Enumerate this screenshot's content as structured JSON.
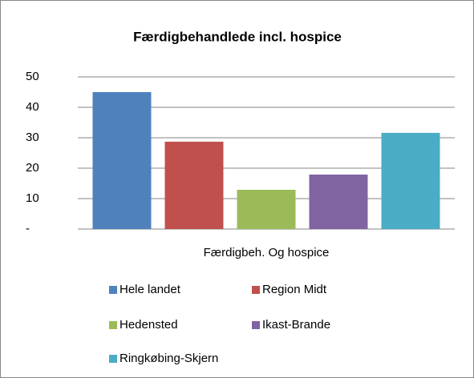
{
  "chart_data": {
    "type": "bar",
    "title": "Færdigbehandlede incl. hospice",
    "categories": [
      "Færdigbeh. Og hospice"
    ],
    "series": [
      {
        "name": "Hele landet",
        "color": "#4f81bd",
        "values": [
          45
        ]
      },
      {
        "name": "Region Midt",
        "color": "#c0504d",
        "values": [
          28.7
        ]
      },
      {
        "name": "Hedensted",
        "color": "#9bbb59",
        "values": [
          12.9
        ]
      },
      {
        "name": "Ikast-Brande",
        "color": "#8064a2",
        "values": [
          17.9
        ]
      },
      {
        "name": "Ringkøbing-Skjern",
        "color": "#4bacc6",
        "values": [
          31.6
        ]
      }
    ],
    "ylim": [
      0,
      50
    ],
    "yticks": [
      {
        "value": 0,
        "label": "-"
      },
      10,
      20,
      30,
      40,
      50
    ],
    "grid": true
  }
}
